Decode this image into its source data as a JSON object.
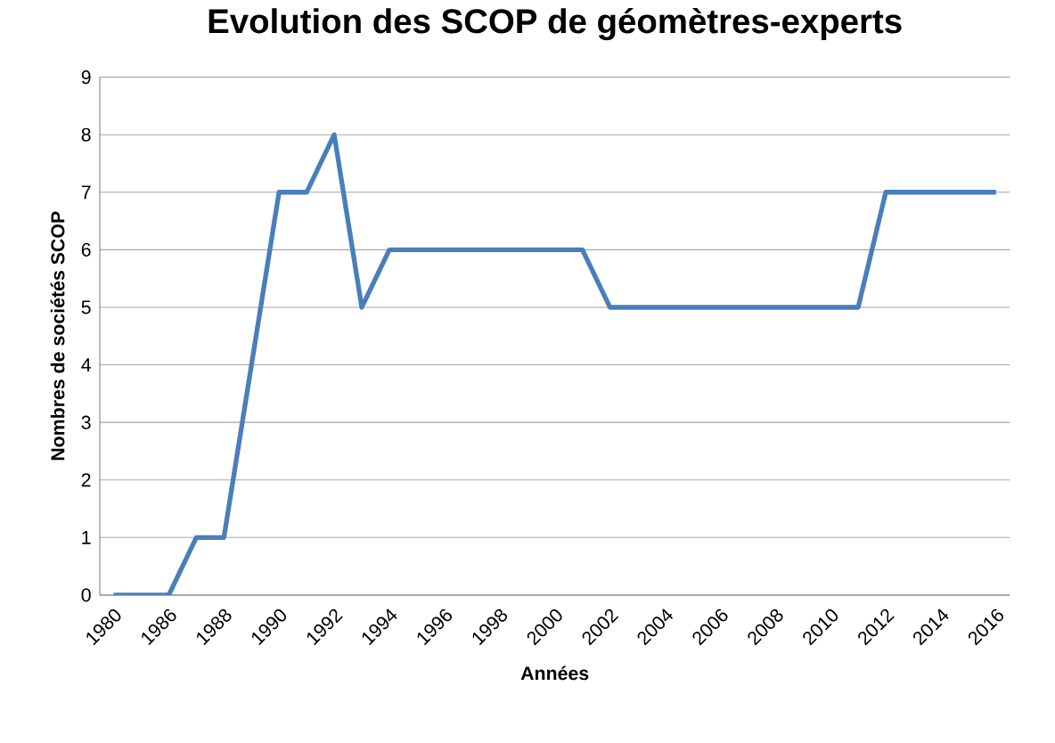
{
  "chart_data": {
    "type": "line",
    "title": "Evolution des SCOP de géomètres-experts",
    "xlabel": "Années",
    "ylabel": "Nombres de sociétés SCOP",
    "categories": [
      "1980",
      null,
      "1986",
      null,
      "1988",
      null,
      "1990",
      null,
      "1992",
      null,
      "1994",
      null,
      "1996",
      null,
      "1998",
      null,
      "2000",
      null,
      "2002",
      null,
      "2004",
      null,
      "2006",
      null,
      "2008",
      null,
      "2010",
      null,
      "2012",
      null,
      "2014",
      null,
      "2016"
    ],
    "series": [
      {
        "color": "#4a7ebb",
        "values": [
          0,
          0,
          0,
          1,
          1,
          4,
          7,
          7,
          8,
          5,
          6,
          6,
          6,
          6,
          6,
          6,
          6,
          6,
          5,
          5,
          5,
          5,
          5,
          5,
          5,
          5,
          5,
          5,
          7,
          7,
          7,
          7,
          7
        ]
      }
    ],
    "ylim": [
      0,
      9
    ],
    "yticks": [
      0,
      1,
      2,
      3,
      4,
      5,
      6,
      7,
      8,
      9
    ],
    "grid": "y",
    "marker": "none",
    "line_style": "solid"
  }
}
